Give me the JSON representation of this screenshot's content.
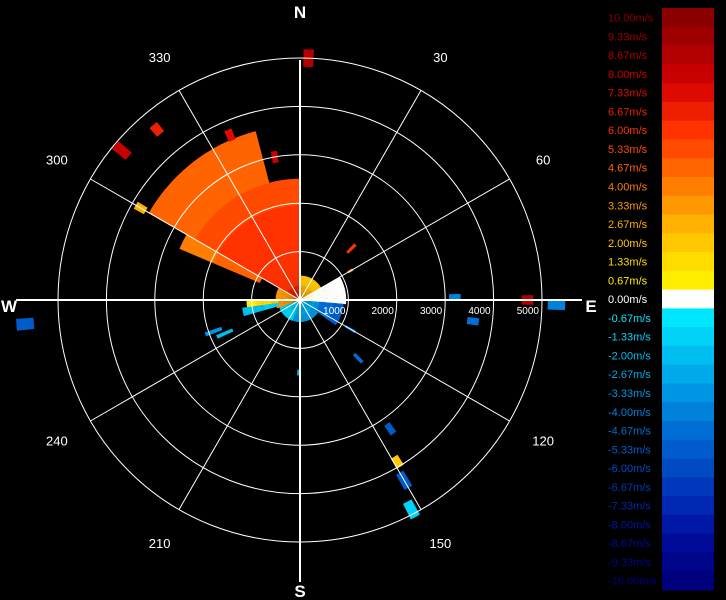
{
  "chart_data": {
    "type": "polar-radar",
    "cardinals": {
      "n": "N",
      "e": "E",
      "s": "S",
      "w": "W"
    },
    "angle_labels": [
      {
        "deg": 30,
        "text": "30"
      },
      {
        "deg": 60,
        "text": "60"
      },
      {
        "deg": 120,
        "text": "120"
      },
      {
        "deg": 150,
        "text": "150"
      },
      {
        "deg": 210,
        "text": "210"
      },
      {
        "deg": 240,
        "text": "240"
      },
      {
        "deg": 300,
        "text": "300"
      },
      {
        "deg": 330,
        "text": "330"
      }
    ],
    "range_rings": [
      1000,
      2000,
      3000,
      4000,
      5000
    ],
    "range_labels": [
      "1000",
      "2000",
      "3000",
      "4000",
      "5000"
    ],
    "max_range": 5000,
    "grid": true,
    "legend_position": "right",
    "legend": [
      {
        "label": "10.00m/s",
        "value": 10.0,
        "color": "#8a0000"
      },
      {
        "label": "9.33m/s",
        "value": 9.33,
        "color": "#9e0000"
      },
      {
        "label": "8.67m/s",
        "value": 8.67,
        "color": "#b30000"
      },
      {
        "label": "8.00m/s",
        "value": 8.0,
        "color": "#c80000"
      },
      {
        "label": "7.33m/s",
        "value": 7.33,
        "color": "#dc0a00"
      },
      {
        "label": "6.67m/s",
        "value": 6.67,
        "color": "#ee1e00"
      },
      {
        "label": "6.00m/s",
        "value": 6.0,
        "color": "#ff3200"
      },
      {
        "label": "5.33m/s",
        "value": 5.33,
        "color": "#ff4a00"
      },
      {
        "label": "4.67m/s",
        "value": 4.67,
        "color": "#ff6400"
      },
      {
        "label": "4.00m/s",
        "value": 4.0,
        "color": "#ff7e00"
      },
      {
        "label": "3.33m/s",
        "value": 3.33,
        "color": "#ff9800"
      },
      {
        "label": "2.67m/s",
        "value": 2.67,
        "color": "#ffb000"
      },
      {
        "label": "2.00m/s",
        "value": 2.0,
        "color": "#ffc800"
      },
      {
        "label": "1.33m/s",
        "value": 1.33,
        "color": "#ffdc00"
      },
      {
        "label": "0.67m/s",
        "value": 0.67,
        "color": "#ffee00"
      },
      {
        "label": "0.00m/s",
        "value": 0.0,
        "color": "#ffffff"
      },
      {
        "label": "-0.67m/s",
        "value": -0.67,
        "color": "#00e6ff"
      },
      {
        "label": "-1.33m/s",
        "value": -1.33,
        "color": "#00d2f8"
      },
      {
        "label": "-2.00m/s",
        "value": -2.0,
        "color": "#00bef0"
      },
      {
        "label": "-2.67m/s",
        "value": -2.67,
        "color": "#00aaea"
      },
      {
        "label": "-3.33m/s",
        "value": -3.33,
        "color": "#0096e4"
      },
      {
        "label": "-4.00m/s",
        "value": -4.0,
        "color": "#0082dc"
      },
      {
        "label": "-4.67m/s",
        "value": -4.67,
        "color": "#006ed4"
      },
      {
        "label": "-5.33m/s",
        "value": -5.33,
        "color": "#005ccc"
      },
      {
        "label": "-6.00m/s",
        "value": -6.0,
        "color": "#004ac4"
      },
      {
        "label": "-6.67m/s",
        "value": -6.67,
        "color": "#0038bc"
      },
      {
        "label": "-7.33m/s",
        "value": -7.33,
        "color": "#0028b2"
      },
      {
        "label": "-8.00m/s",
        "value": -8.0,
        "color": "#0018a6"
      },
      {
        "label": "-8.67m/s",
        "value": -8.67,
        "color": "#000c98"
      },
      {
        "label": "-9.33m/s",
        "value": -9.33,
        "color": "#00068a"
      },
      {
        "label": "-10.00m/s",
        "value": -10.0,
        "color": "#00007c"
      }
    ],
    "sectors": [
      {
        "az0": 300,
        "az1": 360,
        "r0": 0,
        "r1": 2500,
        "v0": 6.5,
        "v1": 5.5
      },
      {
        "az0": 293,
        "az1": 300,
        "r0": 900,
        "r1": 2700,
        "v0": 5.0,
        "v1": 4.0
      },
      {
        "az0": 300,
        "az1": 345,
        "r0": 2500,
        "r1": 3600,
        "v0": 5.0,
        "v1": 4.5
      },
      {
        "az0": 0,
        "az1": 75,
        "r0": 0,
        "r1": 500,
        "v0": 3.0,
        "v1": 2.0
      },
      {
        "az0": 75,
        "az1": 95,
        "r0": 0,
        "r1": 450,
        "v0": 1.0,
        "v1": 0.5
      },
      {
        "az0": 95,
        "az1": 200,
        "r0": 0,
        "r1": 450,
        "v0": -2.0,
        "v1": -3.0
      },
      {
        "az0": 200,
        "az1": 250,
        "r0": 0,
        "r1": 450,
        "v0": -0.7,
        "v1": -1.3
      },
      {
        "az0": 250,
        "az1": 300,
        "r0": 0,
        "r1": 500,
        "v0": 4.0,
        "v1": 3.3
      },
      {
        "az0": 262,
        "az1": 270,
        "r0": 450,
        "r1": 1100,
        "v0": 2.0,
        "v1": 0.7
      },
      {
        "az0": 254,
        "az1": 262,
        "r0": 450,
        "r1": 1200,
        "v0": -1.3,
        "v1": -2.0
      },
      {
        "az0": 60,
        "az1": 95,
        "r0": 0,
        "r1": 950,
        "v0": 0.0,
        "v1": 0.0
      },
      {
        "az0": 95,
        "az1": 125,
        "r0": 400,
        "r1": 900,
        "v0": -4.0,
        "v1": -5.3
      }
    ],
    "echoes": [
      {
        "az": 2,
        "r": 5000,
        "v": 9.0,
        "len": 3
      },
      {
        "az": 300,
        "r": 3800,
        "v": 3.0,
        "len": 2
      },
      {
        "az": 310,
        "r": 4800,
        "v": 8.0,
        "len": 3
      },
      {
        "az": 320,
        "r": 4600,
        "v": 7.0,
        "len": 2
      },
      {
        "az": 337,
        "r": 3700,
        "v": 7.3,
        "len": 2
      },
      {
        "az": 350,
        "r": 3000,
        "v": 8.0,
        "len": 2
      },
      {
        "az": 45,
        "r": 1500,
        "v": 6.0,
        "len": 2
      },
      {
        "az": 60,
        "r": 1200,
        "v": 4.0,
        "len": 1
      },
      {
        "az": 89,
        "r": 3200,
        "v": -4.0,
        "len": 2
      },
      {
        "az": 90,
        "r": 4700,
        "v": 9.0,
        "len": 2
      },
      {
        "az": 91,
        "r": 5300,
        "v": -4.0,
        "len": 3
      },
      {
        "az": 97,
        "r": 3600,
        "v": -4.7,
        "len": 2
      },
      {
        "az": 120,
        "r": 1200,
        "v": -4.0,
        "len": 2
      },
      {
        "az": 135,
        "r": 1700,
        "v": -4.7,
        "len": 2
      },
      {
        "az": 145,
        "r": 3250,
        "v": -5.3,
        "len": 2
      },
      {
        "az": 149,
        "r": 3900,
        "v": 2.0,
        "len": 2
      },
      {
        "az": 150,
        "r": 4300,
        "v": -5.3,
        "len": 3
      },
      {
        "az": 152,
        "r": 4900,
        "v": -1.3,
        "len": 3
      },
      {
        "az": 181,
        "r": 1500,
        "v": -2.7,
        "len": 1
      },
      {
        "az": 246,
        "r": 1700,
        "v": -2.0,
        "len": 3
      },
      {
        "az": 250,
        "r": 1900,
        "v": -3.3,
        "len": 3
      },
      {
        "az": 265,
        "r": 5700,
        "v": -5.3,
        "len": 3
      }
    ]
  }
}
